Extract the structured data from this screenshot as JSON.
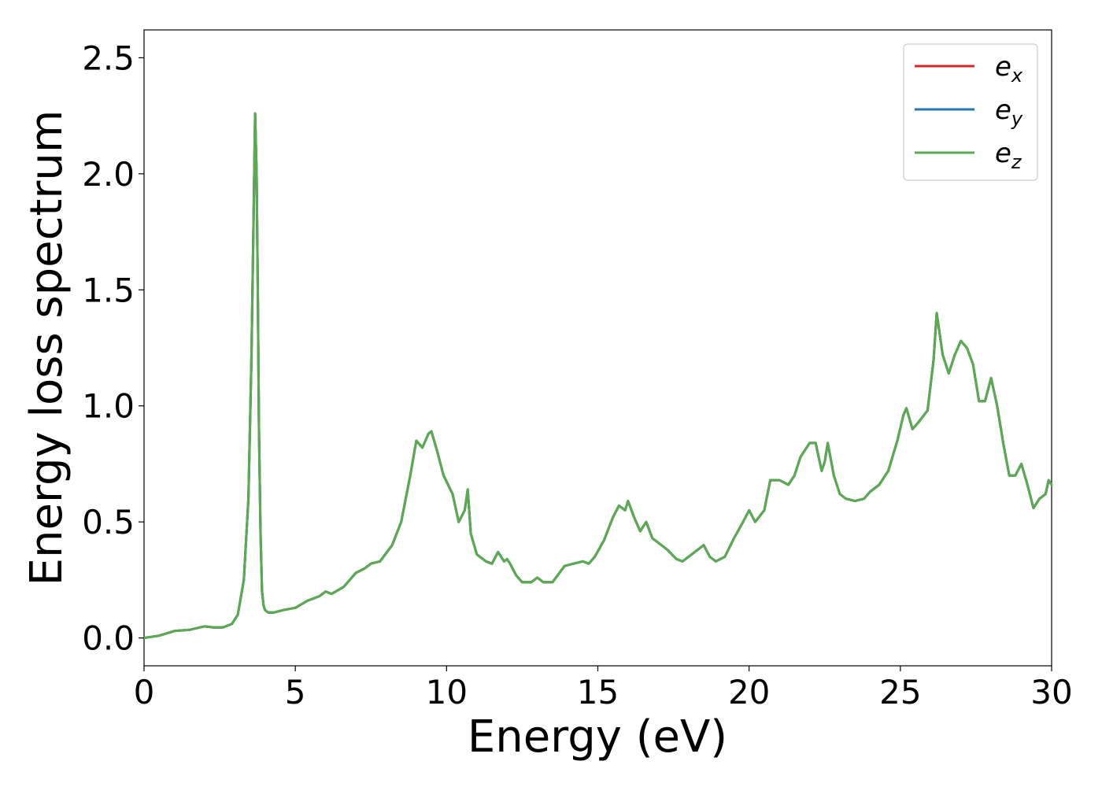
{
  "chart_data": {
    "type": "line",
    "title": "",
    "xlabel": "Energy (eV)",
    "ylabel": "Energy loss spectrum",
    "xlim": [
      0,
      30
    ],
    "ylim": [
      -0.12,
      2.62
    ],
    "xticks": [
      0,
      5,
      10,
      15,
      20,
      25,
      30
    ],
    "xtick_labels": [
      "0",
      "5",
      "10",
      "15",
      "20",
      "25",
      "30"
    ],
    "yticks": [
      0.0,
      0.5,
      1.0,
      1.5,
      2.0,
      2.5
    ],
    "ytick_labels": [
      "0.0",
      "0.5",
      "1.0",
      "1.5",
      "2.0",
      "2.5"
    ],
    "grid": false,
    "legend_position": "top-right",
    "x": [
      0,
      0.5,
      1.0,
      1.5,
      2.0,
      2.3,
      2.6,
      2.9,
      3.1,
      3.3,
      3.45,
      3.55,
      3.62,
      3.67,
      3.72,
      3.76,
      3.8,
      3.85,
      3.9,
      3.95,
      4.0,
      4.1,
      4.3,
      4.6,
      5.0,
      5.4,
      5.8,
      6.0,
      6.2,
      6.6,
      7.0,
      7.3,
      7.5,
      7.8,
      8.2,
      8.5,
      8.8,
      9.0,
      9.2,
      9.4,
      9.5,
      9.7,
      9.9,
      10.2,
      10.4,
      10.6,
      10.7,
      10.8,
      11.0,
      11.3,
      11.5,
      11.7,
      11.9,
      12.0,
      12.1,
      12.3,
      12.5,
      12.8,
      13.0,
      13.2,
      13.5,
      13.9,
      14.2,
      14.5,
      14.7,
      14.9,
      15.2,
      15.5,
      15.7,
      15.9,
      16.0,
      16.2,
      16.4,
      16.6,
      16.8,
      17.0,
      17.3,
      17.6,
      17.8,
      18.0,
      18.3,
      18.5,
      18.7,
      18.9,
      19.2,
      19.5,
      19.8,
      20.0,
      20.2,
      20.5,
      20.7,
      21.0,
      21.3,
      21.5,
      21.7,
      22.0,
      22.2,
      22.4,
      22.5,
      22.6,
      22.8,
      23.0,
      23.2,
      23.5,
      23.8,
      24.0,
      24.3,
      24.6,
      24.9,
      25.1,
      25.2,
      25.4,
      25.6,
      25.9,
      26.1,
      26.2,
      26.4,
      26.6,
      26.8,
      27.0,
      27.2,
      27.4,
      27.6,
      27.8,
      28.0,
      28.2,
      28.4,
      28.6,
      28.8,
      29.0,
      29.2,
      29.4,
      29.6,
      29.8,
      29.9,
      30.0
    ],
    "series": [
      {
        "name": "e_x",
        "color": "#d62728",
        "shared_values": true
      },
      {
        "name": "e_y",
        "color": "#1f77b4",
        "shared_values": true
      },
      {
        "name": "e_z",
        "color": "#5aaa50",
        "shared_values": true
      }
    ],
    "values": [
      0.0,
      0.01,
      0.03,
      0.035,
      0.05,
      0.045,
      0.045,
      0.06,
      0.1,
      0.25,
      0.6,
      1.2,
      1.8,
      2.26,
      2.0,
      1.5,
      0.9,
      0.45,
      0.2,
      0.14,
      0.12,
      0.11,
      0.11,
      0.12,
      0.13,
      0.16,
      0.18,
      0.2,
      0.19,
      0.22,
      0.28,
      0.3,
      0.32,
      0.33,
      0.4,
      0.5,
      0.7,
      0.85,
      0.82,
      0.88,
      0.89,
      0.8,
      0.7,
      0.62,
      0.5,
      0.55,
      0.64,
      0.45,
      0.36,
      0.33,
      0.32,
      0.37,
      0.33,
      0.34,
      0.32,
      0.27,
      0.24,
      0.24,
      0.26,
      0.24,
      0.24,
      0.31,
      0.32,
      0.33,
      0.32,
      0.35,
      0.42,
      0.52,
      0.57,
      0.55,
      0.59,
      0.52,
      0.46,
      0.5,
      0.43,
      0.41,
      0.38,
      0.34,
      0.33,
      0.35,
      0.38,
      0.4,
      0.35,
      0.33,
      0.35,
      0.43,
      0.5,
      0.55,
      0.5,
      0.55,
      0.68,
      0.68,
      0.66,
      0.7,
      0.78,
      0.84,
      0.84,
      0.72,
      0.76,
      0.84,
      0.7,
      0.62,
      0.6,
      0.59,
      0.6,
      0.63,
      0.66,
      0.72,
      0.85,
      0.96,
      0.99,
      0.9,
      0.93,
      0.98,
      1.2,
      1.4,
      1.22,
      1.14,
      1.22,
      1.28,
      1.25,
      1.18,
      1.02,
      1.02,
      1.12,
      1.0,
      0.84,
      0.7,
      0.7,
      0.75,
      0.66,
      0.56,
      0.6,
      0.62,
      0.68,
      0.66
    ]
  },
  "legend": {
    "entries": [
      {
        "base": "e",
        "sub": "x",
        "color": "#d62728"
      },
      {
        "base": "e",
        "sub": "y",
        "color": "#1f77b4"
      },
      {
        "base": "e",
        "sub": "z",
        "color": "#5aaa50"
      }
    ]
  }
}
